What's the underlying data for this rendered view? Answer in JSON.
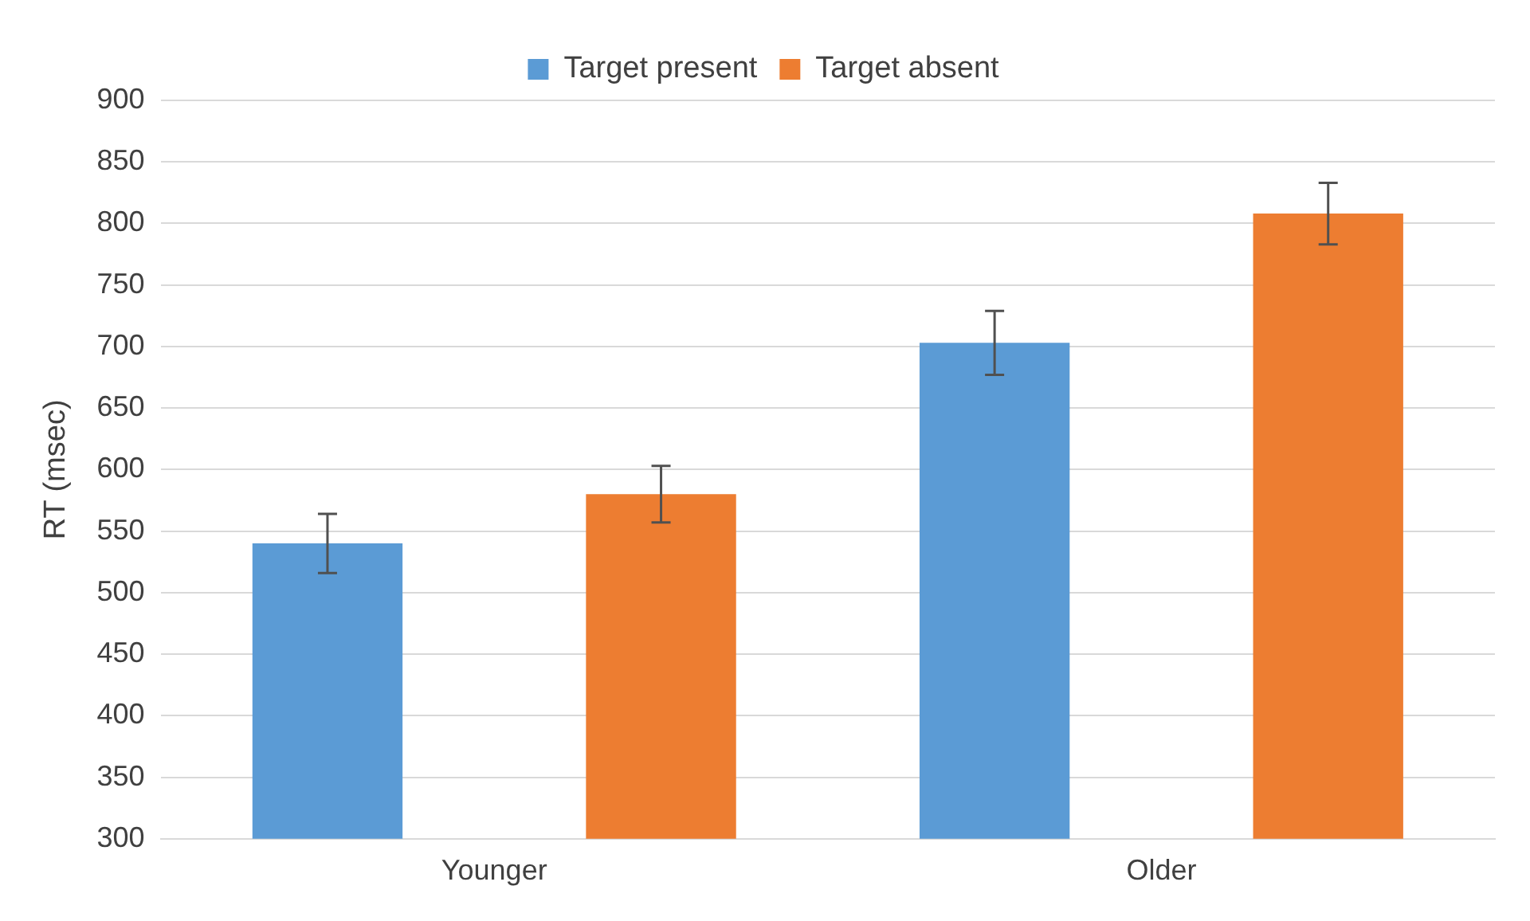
{
  "chart_data": {
    "type": "bar",
    "ylabel": "RT (msec)",
    "categories": [
      "Younger",
      "Older"
    ],
    "series": [
      {
        "name": "Target present",
        "color": "#5b9bd5",
        "values": [
          540,
          703
        ],
        "errors": [
          24,
          26
        ]
      },
      {
        "name": "Target absent",
        "color": "#ed7d31",
        "values": [
          580,
          808
        ],
        "errors": [
          23,
          25
        ]
      }
    ],
    "ylim": [
      300,
      900
    ],
    "yticks": [
      300,
      350,
      400,
      450,
      500,
      550,
      600,
      650,
      700,
      750,
      800,
      850,
      900
    ],
    "grid": "y",
    "legend": "top"
  }
}
